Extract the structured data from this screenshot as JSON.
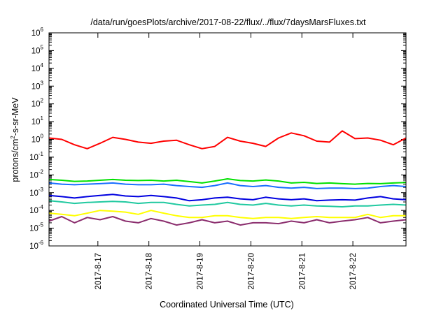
{
  "chart_data": {
    "type": "line",
    "title": "/data/run/goesPlots/archive/2017-08-22/flux/../flux/7daysMarsFluxes.txt",
    "xlabel": "Coordinated Universal Time (UTC)",
    "ylabel": "protons/cm2-s-sr-MeV",
    "yscale": "log",
    "ylim_exponents": [
      -6,
      6
    ],
    "y_tick_labels": [
      "10-6",
      "10-5",
      "10-4",
      "10-3",
      "10-2",
      "10-1",
      "100",
      "101",
      "102",
      "103",
      "104",
      "105",
      "106"
    ],
    "x_unit": "day",
    "xlim": [
      "2017-08-16 01:00",
      "2017-08-23 01:00"
    ],
    "x_ticks": [
      "2017-8-17",
      "2017-8-18",
      "2017-8-19",
      "2017-8-20",
      "2017-8-21",
      "2017-8-22"
    ],
    "x": [
      "2017-08-16 01:00",
      "2017-08-16 07:00",
      "2017-08-16 13:00",
      "2017-08-16 19:00",
      "2017-08-17 01:00",
      "2017-08-17 07:00",
      "2017-08-17 13:00",
      "2017-08-17 19:00",
      "2017-08-18 01:00",
      "2017-08-18 07:00",
      "2017-08-18 13:00",
      "2017-08-18 19:00",
      "2017-08-19 01:00",
      "2017-08-19 07:00",
      "2017-08-19 13:00",
      "2017-08-19 19:00",
      "2017-08-20 01:00",
      "2017-08-20 07:00",
      "2017-08-20 13:00",
      "2017-08-20 19:00",
      "2017-08-21 01:00",
      "2017-08-21 07:00",
      "2017-08-21 13:00",
      "2017-08-21 19:00",
      "2017-08-22 01:00",
      "2017-08-22 07:00",
      "2017-08-22 13:00",
      "2017-08-22 19:00",
      "2017-08-23 01:00"
    ],
    "series": [
      {
        "color": "#ff0000",
        "values": [
          1.2,
          1.0,
          0.5,
          0.3,
          0.6,
          1.3,
          1.0,
          0.7,
          0.6,
          0.8,
          0.9,
          0.5,
          0.3,
          0.4,
          1.3,
          0.8,
          0.6,
          0.4,
          1.2,
          2.3,
          1.6,
          0.8,
          0.7,
          3.0,
          1.1,
          1.2,
          0.9,
          0.5,
          1.2
        ]
      },
      {
        "color": "#00e000",
        "values": [
          0.0055,
          0.005,
          0.0043,
          0.0045,
          0.005,
          0.0055,
          0.005,
          0.0048,
          0.005,
          0.0045,
          0.005,
          0.0042,
          0.0035,
          0.0045,
          0.006,
          0.0048,
          0.0045,
          0.0052,
          0.0045,
          0.0035,
          0.0038,
          0.0033,
          0.0035,
          0.0032,
          0.003,
          0.0033,
          0.0032,
          0.0035,
          0.0037
        ]
      },
      {
        "color": "#1a6fff",
        "values": [
          0.0035,
          0.003,
          0.0028,
          0.003,
          0.0032,
          0.0035,
          0.003,
          0.0028,
          0.0028,
          0.003,
          0.0025,
          0.0022,
          0.002,
          0.0025,
          0.0035,
          0.0025,
          0.0022,
          0.0025,
          0.002,
          0.0018,
          0.002,
          0.0017,
          0.0018,
          0.0018,
          0.0017,
          0.0018,
          0.0022,
          0.0025,
          0.0022
        ]
      },
      {
        "color": "#0000e0",
        "values": [
          0.0007,
          0.0006,
          0.0005,
          0.0006,
          0.0007,
          0.0008,
          0.00065,
          0.0006,
          0.0007,
          0.0006,
          0.0005,
          0.00035,
          0.0004,
          0.0005,
          0.00055,
          0.00045,
          0.0004,
          0.00055,
          0.00045,
          0.0004,
          0.00045,
          0.00035,
          0.00038,
          0.0004,
          0.00038,
          0.0005,
          0.0006,
          0.00045,
          0.0004
        ]
      },
      {
        "color": "#20c9a0",
        "values": [
          0.00035,
          0.0003,
          0.00025,
          0.00028,
          0.0003,
          0.00032,
          0.0003,
          0.00025,
          0.00028,
          0.00028,
          0.00022,
          0.00018,
          0.0002,
          0.00022,
          0.00028,
          0.00022,
          0.0002,
          0.00025,
          0.0002,
          0.00018,
          0.0002,
          0.00018,
          0.00017,
          0.00016,
          0.00018,
          0.00018,
          0.0002,
          0.00022,
          0.0002
        ]
      },
      {
        "color": "#ffff00",
        "values": [
          7e-05,
          6e-05,
          5e-05,
          7e-05,
          0.0001,
          9e-05,
          8e-05,
          6e-05,
          0.0001,
          7e-05,
          5e-05,
          4e-05,
          4e-05,
          5e-05,
          5e-05,
          4e-05,
          3.5e-05,
          4e-05,
          4e-05,
          3.5e-05,
          4e-05,
          4.5e-05,
          4e-05,
          4e-05,
          4e-05,
          6e-05,
          4e-05,
          5e-05,
          5e-05
        ]
      },
      {
        "color": "#8b2e6e",
        "values": [
          2.5e-05,
          4.5e-05,
          2e-05,
          4e-05,
          3e-05,
          4.5e-05,
          2.5e-05,
          2e-05,
          3.5e-05,
          2.5e-05,
          1.5e-05,
          2e-05,
          3e-05,
          2e-05,
          2.5e-05,
          1.5e-05,
          2e-05,
          2e-05,
          1.8e-05,
          2.5e-05,
          2e-05,
          3e-05,
          2e-05,
          2.5e-05,
          3e-05,
          4e-05,
          2e-05,
          2.5e-05,
          3e-05
        ]
      }
    ]
  }
}
